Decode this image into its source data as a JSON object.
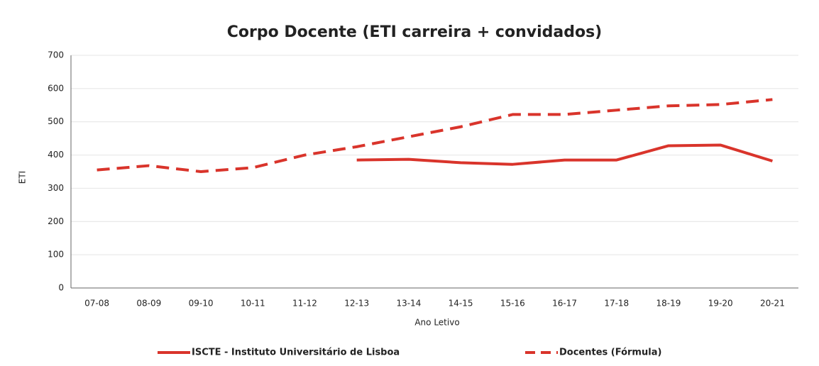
{
  "chart_data": {
    "type": "line",
    "title": "Corpo Docente (ETI carreira + convidados)",
    "x_label": "Ano Letivo",
    "y_label": "ETI",
    "categories": [
      "07-08",
      "08-09",
      "09-10",
      "10-11",
      "11-12",
      "12-13",
      "13-14",
      "14-15",
      "15-16",
      "16-17",
      "17-18",
      "18-19",
      "19-20",
      "20-21"
    ],
    "series": [
      {
        "name": "ISCTE - Instituto Universitário de Lisboa",
        "color": "#d9342b",
        "line_style": "solid",
        "values": [
          null,
          null,
          null,
          null,
          null,
          385,
          387,
          377,
          372,
          385,
          385,
          428,
          430,
          382
        ]
      },
      {
        "name": "Docentes (Fórmula)",
        "color": "#d9342b",
        "line_style": "dashed",
        "values": [
          355,
          368,
          350,
          362,
          400,
          425,
          455,
          485,
          522,
          522,
          535,
          548,
          552,
          567
        ]
      }
    ],
    "ylim": [
      0,
      700
    ],
    "yticks": [
      0,
      100,
      200,
      300,
      400,
      500,
      600,
      700
    ],
    "grid": true
  }
}
